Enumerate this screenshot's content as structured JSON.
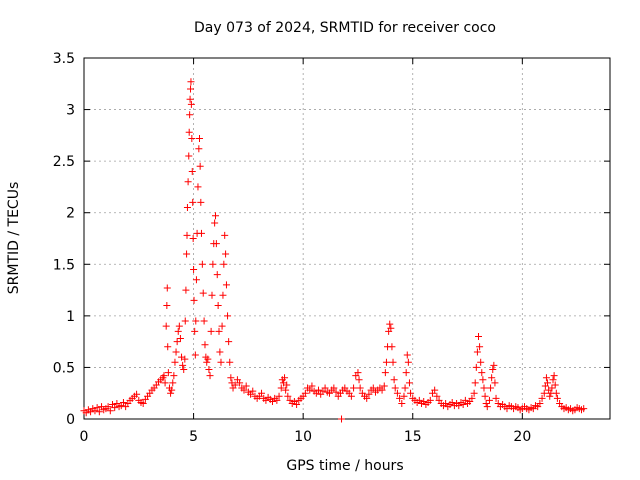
{
  "chart_data": {
    "type": "scatter",
    "title": "Day 073 of 2024, SRMTID for receiver coco",
    "xlabel": "GPS time / hours",
    "ylabel": "SRMTID / TECUs",
    "xlim": [
      0,
      24
    ],
    "ylim": [
      0,
      3.5
    ],
    "xticks": [
      0,
      5,
      10,
      15,
      20
    ],
    "xtick_labels": [
      "0",
      "5",
      "10",
      "15",
      "20"
    ],
    "yticks": [
      0,
      0.5,
      1,
      1.5,
      2,
      2.5,
      3,
      3.5
    ],
    "ytick_labels": [
      "0",
      "0.5",
      "1",
      "1.5",
      "2",
      "2.5",
      "3",
      "3.5"
    ],
    "grid": true,
    "marker": "+",
    "color": "#ff0000",
    "series": [
      {
        "name": "SRMTID",
        "points": [
          [
            0.0,
            0.08
          ],
          [
            0.1,
            0.06
          ],
          [
            0.2,
            0.09
          ],
          [
            0.3,
            0.07
          ],
          [
            0.4,
            0.1
          ],
          [
            0.5,
            0.08
          ],
          [
            0.6,
            0.11
          ],
          [
            0.7,
            0.07
          ],
          [
            0.8,
            0.12
          ],
          [
            0.9,
            0.09
          ],
          [
            1.0,
            0.1
          ],
          [
            1.1,
            0.12
          ],
          [
            1.2,
            0.08
          ],
          [
            1.3,
            0.14
          ],
          [
            1.4,
            0.11
          ],
          [
            1.5,
            0.15
          ],
          [
            1.6,
            0.12
          ],
          [
            1.7,
            0.13
          ],
          [
            1.8,
            0.16
          ],
          [
            1.9,
            0.12
          ],
          [
            2.0,
            0.15
          ],
          [
            2.1,
            0.18
          ],
          [
            2.2,
            0.2
          ],
          [
            2.3,
            0.22
          ],
          [
            2.4,
            0.24
          ],
          [
            2.5,
            0.18
          ],
          [
            2.6,
            0.16
          ],
          [
            2.7,
            0.15
          ],
          [
            2.8,
            0.19
          ],
          [
            2.9,
            0.22
          ],
          [
            3.0,
            0.25
          ],
          [
            3.1,
            0.28
          ],
          [
            3.2,
            0.3
          ],
          [
            3.3,
            0.33
          ],
          [
            3.4,
            0.36
          ],
          [
            3.5,
            0.38
          ],
          [
            3.6,
            0.4
          ],
          [
            3.65,
            0.42
          ],
          [
            3.7,
            0.35
          ],
          [
            3.75,
            0.9
          ],
          [
            3.78,
            1.1
          ],
          [
            3.8,
            1.27
          ],
          [
            3.82,
            0.7
          ],
          [
            3.85,
            0.45
          ],
          [
            3.9,
            0.3
          ],
          [
            3.95,
            0.25
          ],
          [
            4.0,
            0.28
          ],
          [
            4.05,
            0.35
          ],
          [
            4.1,
            0.42
          ],
          [
            4.15,
            0.55
          ],
          [
            4.2,
            0.65
          ],
          [
            4.25,
            0.75
          ],
          [
            4.3,
            0.85
          ],
          [
            4.35,
            0.9
          ],
          [
            4.4,
            0.78
          ],
          [
            4.45,
            0.6
          ],
          [
            4.5,
            0.52
          ],
          [
            4.55,
            0.48
          ],
          [
            4.6,
            0.58
          ],
          [
            4.62,
            0.95
          ],
          [
            4.65,
            1.25
          ],
          [
            4.68,
            1.6
          ],
          [
            4.7,
            1.78
          ],
          [
            4.72,
            2.05
          ],
          [
            4.75,
            2.3
          ],
          [
            4.78,
            2.55
          ],
          [
            4.8,
            2.78
          ],
          [
            4.82,
            2.95
          ],
          [
            4.84,
            3.1
          ],
          [
            4.86,
            3.2
          ],
          [
            4.88,
            3.27
          ],
          [
            4.9,
            3.05
          ],
          [
            4.92,
            2.72
          ],
          [
            4.94,
            2.4
          ],
          [
            4.96,
            2.1
          ],
          [
            4.98,
            1.75
          ],
          [
            5.0,
            1.45
          ],
          [
            5.02,
            1.15
          ],
          [
            5.05,
            0.85
          ],
          [
            5.08,
            0.62
          ],
          [
            5.1,
            0.95
          ],
          [
            5.13,
            1.35
          ],
          [
            5.16,
            1.8
          ],
          [
            5.2,
            2.25
          ],
          [
            5.24,
            2.62
          ],
          [
            5.27,
            2.72
          ],
          [
            5.3,
            2.45
          ],
          [
            5.33,
            2.1
          ],
          [
            5.36,
            1.8
          ],
          [
            5.4,
            1.5
          ],
          [
            5.44,
            1.22
          ],
          [
            5.48,
            0.95
          ],
          [
            5.52,
            0.72
          ],
          [
            5.56,
            0.6
          ],
          [
            5.6,
            0.55
          ],
          [
            5.65,
            0.58
          ],
          [
            5.7,
            0.48
          ],
          [
            5.75,
            0.42
          ],
          [
            5.8,
            0.85
          ],
          [
            5.84,
            1.2
          ],
          [
            5.88,
            1.5
          ],
          [
            5.92,
            1.7
          ],
          [
            5.96,
            1.9
          ],
          [
            6.0,
            1.97
          ],
          [
            6.04,
            1.7
          ],
          [
            6.08,
            1.4
          ],
          [
            6.12,
            1.1
          ],
          [
            6.16,
            0.85
          ],
          [
            6.2,
            0.65
          ],
          [
            6.25,
            0.55
          ],
          [
            6.3,
            0.9
          ],
          [
            6.34,
            1.2
          ],
          [
            6.38,
            1.5
          ],
          [
            6.42,
            1.78
          ],
          [
            6.46,
            1.6
          ],
          [
            6.5,
            1.3
          ],
          [
            6.55,
            1.0
          ],
          [
            6.6,
            0.75
          ],
          [
            6.65,
            0.55
          ],
          [
            6.7,
            0.4
          ],
          [
            6.75,
            0.35
          ],
          [
            6.8,
            0.3
          ],
          [
            6.9,
            0.33
          ],
          [
            7.0,
            0.38
          ],
          [
            7.1,
            0.35
          ],
          [
            7.2,
            0.3
          ],
          [
            7.3,
            0.28
          ],
          [
            7.4,
            0.32
          ],
          [
            7.5,
            0.26
          ],
          [
            7.6,
            0.24
          ],
          [
            7.7,
            0.27
          ],
          [
            7.8,
            0.22
          ],
          [
            7.9,
            0.2
          ],
          [
            8.0,
            0.22
          ],
          [
            8.1,
            0.25
          ],
          [
            8.2,
            0.2
          ],
          [
            8.3,
            0.18
          ],
          [
            8.4,
            0.21
          ],
          [
            8.5,
            0.19
          ],
          [
            8.6,
            0.17
          ],
          [
            8.7,
            0.2
          ],
          [
            8.8,
            0.18
          ],
          [
            8.9,
            0.22
          ],
          [
            9.0,
            0.3
          ],
          [
            9.05,
            0.38
          ],
          [
            9.1,
            0.35
          ],
          [
            9.15,
            0.4
          ],
          [
            9.2,
            0.28
          ],
          [
            9.25,
            0.33
          ],
          [
            9.3,
            0.22
          ],
          [
            9.4,
            0.18
          ],
          [
            9.5,
            0.15
          ],
          [
            9.6,
            0.17
          ],
          [
            9.7,
            0.14
          ],
          [
            9.8,
            0.18
          ],
          [
            9.9,
            0.2
          ],
          [
            10.0,
            0.22
          ],
          [
            10.1,
            0.25
          ],
          [
            10.2,
            0.3
          ],
          [
            10.3,
            0.28
          ],
          [
            10.4,
            0.32
          ],
          [
            10.5,
            0.27
          ],
          [
            10.6,
            0.25
          ],
          [
            10.7,
            0.28
          ],
          [
            10.8,
            0.24
          ],
          [
            10.9,
            0.27
          ],
          [
            11.0,
            0.3
          ],
          [
            11.1,
            0.26
          ],
          [
            11.2,
            0.25
          ],
          [
            11.3,
            0.28
          ],
          [
            11.4,
            0.3
          ],
          [
            11.5,
            0.26
          ],
          [
            11.6,
            0.22
          ],
          [
            11.7,
            0.25
          ],
          [
            11.75,
            0.0
          ],
          [
            11.8,
            0.28
          ],
          [
            11.9,
            0.3
          ],
          [
            12.0,
            0.27
          ],
          [
            12.1,
            0.25
          ],
          [
            12.2,
            0.22
          ],
          [
            12.3,
            0.3
          ],
          [
            12.4,
            0.42
          ],
          [
            12.5,
            0.45
          ],
          [
            12.55,
            0.38
          ],
          [
            12.6,
            0.3
          ],
          [
            12.7,
            0.25
          ],
          [
            12.8,
            0.22
          ],
          [
            12.9,
            0.2
          ],
          [
            13.0,
            0.24
          ],
          [
            13.1,
            0.28
          ],
          [
            13.2,
            0.3
          ],
          [
            13.3,
            0.26
          ],
          [
            13.4,
            0.28
          ],
          [
            13.5,
            0.3
          ],
          [
            13.6,
            0.28
          ],
          [
            13.7,
            0.32
          ],
          [
            13.75,
            0.45
          ],
          [
            13.8,
            0.55
          ],
          [
            13.85,
            0.7
          ],
          [
            13.9,
            0.85
          ],
          [
            13.95,
            0.92
          ],
          [
            14.0,
            0.88
          ],
          [
            14.05,
            0.7
          ],
          [
            14.1,
            0.55
          ],
          [
            14.15,
            0.38
          ],
          [
            14.2,
            0.3
          ],
          [
            14.3,
            0.25
          ],
          [
            14.4,
            0.2
          ],
          [
            14.5,
            0.15
          ],
          [
            14.6,
            0.22
          ],
          [
            14.65,
            0.3
          ],
          [
            14.7,
            0.45
          ],
          [
            14.75,
            0.62
          ],
          [
            14.8,
            0.55
          ],
          [
            14.85,
            0.35
          ],
          [
            14.9,
            0.25
          ],
          [
            15.0,
            0.2
          ],
          [
            15.1,
            0.18
          ],
          [
            15.2,
            0.16
          ],
          [
            15.3,
            0.18
          ],
          [
            15.4,
            0.15
          ],
          [
            15.5,
            0.17
          ],
          [
            15.6,
            0.14
          ],
          [
            15.7,
            0.16
          ],
          [
            15.8,
            0.18
          ],
          [
            15.9,
            0.25
          ],
          [
            16.0,
            0.28
          ],
          [
            16.1,
            0.22
          ],
          [
            16.2,
            0.18
          ],
          [
            16.3,
            0.15
          ],
          [
            16.4,
            0.13
          ],
          [
            16.5,
            0.15
          ],
          [
            16.6,
            0.12
          ],
          [
            16.7,
            0.14
          ],
          [
            16.8,
            0.16
          ],
          [
            16.9,
            0.13
          ],
          [
            17.0,
            0.15
          ],
          [
            17.1,
            0.13
          ],
          [
            17.2,
            0.16
          ],
          [
            17.3,
            0.14
          ],
          [
            17.4,
            0.18
          ],
          [
            17.5,
            0.15
          ],
          [
            17.6,
            0.17
          ],
          [
            17.7,
            0.2
          ],
          [
            17.8,
            0.25
          ],
          [
            17.85,
            0.35
          ],
          [
            17.9,
            0.5
          ],
          [
            17.95,
            0.65
          ],
          [
            18.0,
            0.8
          ],
          [
            18.05,
            0.7
          ],
          [
            18.1,
            0.55
          ],
          [
            18.15,
            0.45
          ],
          [
            18.2,
            0.38
          ],
          [
            18.25,
            0.3
          ],
          [
            18.3,
            0.22
          ],
          [
            18.35,
            0.15
          ],
          [
            18.4,
            0.12
          ],
          [
            18.5,
            0.18
          ],
          [
            18.55,
            0.3
          ],
          [
            18.6,
            0.4
          ],
          [
            18.65,
            0.48
          ],
          [
            18.7,
            0.52
          ],
          [
            18.75,
            0.35
          ],
          [
            18.8,
            0.2
          ],
          [
            18.9,
            0.15
          ],
          [
            19.0,
            0.12
          ],
          [
            19.1,
            0.14
          ],
          [
            19.2,
            0.12
          ],
          [
            19.3,
            0.1
          ],
          [
            19.4,
            0.13
          ],
          [
            19.5,
            0.12
          ],
          [
            19.6,
            0.1
          ],
          [
            19.7,
            0.12
          ],
          [
            19.8,
            0.11
          ],
          [
            19.9,
            0.09
          ],
          [
            20.0,
            0.1
          ],
          [
            20.1,
            0.12
          ],
          [
            20.2,
            0.1
          ],
          [
            20.3,
            0.09
          ],
          [
            20.4,
            0.11
          ],
          [
            20.5,
            0.1
          ],
          [
            20.6,
            0.13
          ],
          [
            20.7,
            0.12
          ],
          [
            20.8,
            0.15
          ],
          [
            20.9,
            0.2
          ],
          [
            21.0,
            0.25
          ],
          [
            21.05,
            0.32
          ],
          [
            21.1,
            0.4
          ],
          [
            21.15,
            0.35
          ],
          [
            21.2,
            0.28
          ],
          [
            21.25,
            0.22
          ],
          [
            21.3,
            0.25
          ],
          [
            21.35,
            0.3
          ],
          [
            21.4,
            0.38
          ],
          [
            21.45,
            0.42
          ],
          [
            21.5,
            0.33
          ],
          [
            21.55,
            0.25
          ],
          [
            21.6,
            0.2
          ],
          [
            21.7,
            0.15
          ],
          [
            21.8,
            0.12
          ],
          [
            21.9,
            0.1
          ],
          [
            22.0,
            0.11
          ],
          [
            22.1,
            0.09
          ],
          [
            22.2,
            0.1
          ],
          [
            22.3,
            0.08
          ],
          [
            22.4,
            0.09
          ],
          [
            22.5,
            0.11
          ],
          [
            22.6,
            0.1
          ],
          [
            22.7,
            0.09
          ],
          [
            22.8,
            0.1
          ]
        ]
      }
    ]
  }
}
